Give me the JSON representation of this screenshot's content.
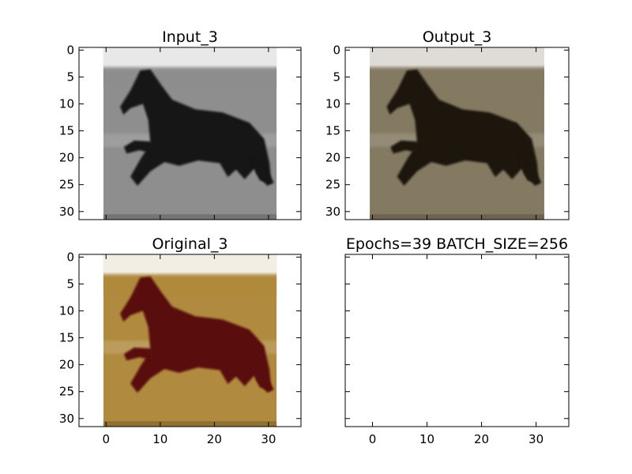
{
  "chart_data": [
    {
      "type": "image",
      "title": "Input_3",
      "image_rendering": "grayscale horse",
      "xlim": [
        -5,
        36
      ],
      "ylim": [
        31.5,
        -0.5
      ],
      "yticks": [
        0,
        5,
        10,
        15,
        20,
        25,
        30
      ],
      "xticks_visible": false,
      "image_extent": [
        -0.5,
        31.5,
        31.5,
        -0.5
      ],
      "palette": {
        "sky": "#e8e8e8",
        "field": "#8e8e8e",
        "horse": "#121212"
      }
    },
    {
      "type": "image",
      "title": "Output_3",
      "image_rendering": "colorized horse",
      "xlim": [
        -5,
        36
      ],
      "ylim": [
        31.5,
        -0.5
      ],
      "yticks": [
        0,
        5,
        10,
        15,
        20,
        25,
        30
      ],
      "xticks_visible": false,
      "image_extent": [
        -0.5,
        31.5,
        31.5,
        -0.5
      ],
      "palette": {
        "sky": "#dfdcd8",
        "field": "#847a62",
        "horse": "#1b1510"
      }
    },
    {
      "type": "image",
      "title": "Original_3",
      "image_rendering": "color horse",
      "xlim": [
        -5,
        36
      ],
      "ylim": [
        31.5,
        -0.5
      ],
      "xticks": [
        0,
        10,
        20,
        30
      ],
      "yticks": [
        0,
        5,
        10,
        15,
        20,
        25,
        30
      ],
      "image_extent": [
        -0.5,
        31.5,
        31.5,
        -0.5
      ],
      "palette": {
        "sky": "#f2eee6",
        "field": "#b08a3e",
        "horse": "#5a0b0b"
      }
    },
    {
      "type": "empty",
      "title": "Epochs=39 BATCH_SIZE=256",
      "xlim": [
        -5,
        36
      ],
      "ylim": [
        31.5,
        -0.5
      ],
      "xticks": [
        0,
        10,
        20,
        30
      ],
      "yticks_visible": false
    }
  ]
}
